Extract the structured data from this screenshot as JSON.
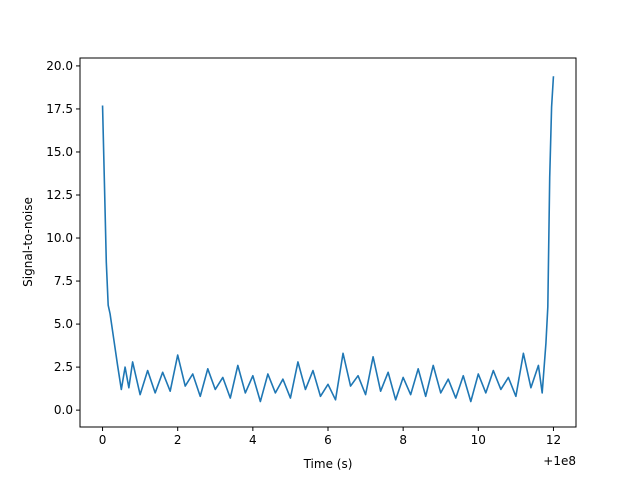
{
  "chart_data": {
    "type": "line",
    "title": "",
    "xlabel": "Time (s)",
    "ylabel": "Signal-to-noise",
    "x_offset_label": "+1e8",
    "xlim": [
      -0.6,
      12.6
    ],
    "ylim": [
      -0.98,
      20.46
    ],
    "xticks": [
      0,
      2,
      4,
      6,
      8,
      10,
      12
    ],
    "xtick_labels": [
      "0",
      "2",
      "4",
      "6",
      "8",
      "10",
      "12"
    ],
    "yticks": [
      0.0,
      2.5,
      5.0,
      7.5,
      10.0,
      12.5,
      15.0,
      17.5,
      20.0
    ],
    "ytick_labels": [
      "0.0",
      "2.5",
      "5.0",
      "7.5",
      "10.0",
      "12.5",
      "15.0",
      "17.5",
      "20.0"
    ],
    "grid": false,
    "series": [
      {
        "color": "#1f77b4",
        "x": [
          0.0,
          0.05,
          0.1,
          0.15,
          0.2,
          0.3,
          0.4,
          0.5,
          0.6,
          0.7,
          0.8,
          1.0,
          1.2,
          1.4,
          1.6,
          1.8,
          2.0,
          2.2,
          2.4,
          2.6,
          2.8,
          3.0,
          3.2,
          3.4,
          3.6,
          3.8,
          4.0,
          4.2,
          4.4,
          4.6,
          4.8,
          5.0,
          5.2,
          5.4,
          5.6,
          5.8,
          6.0,
          6.2,
          6.4,
          6.6,
          6.8,
          7.0,
          7.2,
          7.4,
          7.6,
          7.8,
          8.0,
          8.2,
          8.4,
          8.6,
          8.8,
          9.0,
          9.2,
          9.4,
          9.6,
          9.8,
          10.0,
          10.2,
          10.4,
          10.6,
          10.8,
          11.0,
          11.2,
          11.4,
          11.6,
          11.7,
          11.8,
          11.85,
          11.9,
          11.95,
          12.0
        ],
        "y": [
          17.7,
          13.2,
          8.6,
          6.1,
          5.6,
          4.1,
          2.6,
          1.2,
          2.5,
          1.3,
          2.8,
          0.9,
          2.3,
          1.0,
          2.2,
          1.1,
          3.2,
          1.4,
          2.1,
          0.8,
          2.4,
          1.2,
          1.9,
          0.7,
          2.6,
          1.0,
          2.0,
          0.5,
          2.1,
          1.0,
          1.8,
          0.7,
          2.8,
          1.2,
          2.3,
          0.8,
          1.5,
          0.6,
          3.3,
          1.4,
          2.0,
          0.9,
          3.1,
          1.1,
          2.2,
          0.6,
          1.9,
          0.9,
          2.4,
          0.8,
          2.6,
          1.0,
          1.8,
          0.7,
          2.0,
          0.5,
          2.1,
          1.0,
          2.3,
          1.2,
          1.9,
          0.8,
          3.3,
          1.3,
          2.6,
          1.0,
          3.9,
          6.0,
          13.5,
          17.6,
          19.4
        ]
      }
    ]
  }
}
